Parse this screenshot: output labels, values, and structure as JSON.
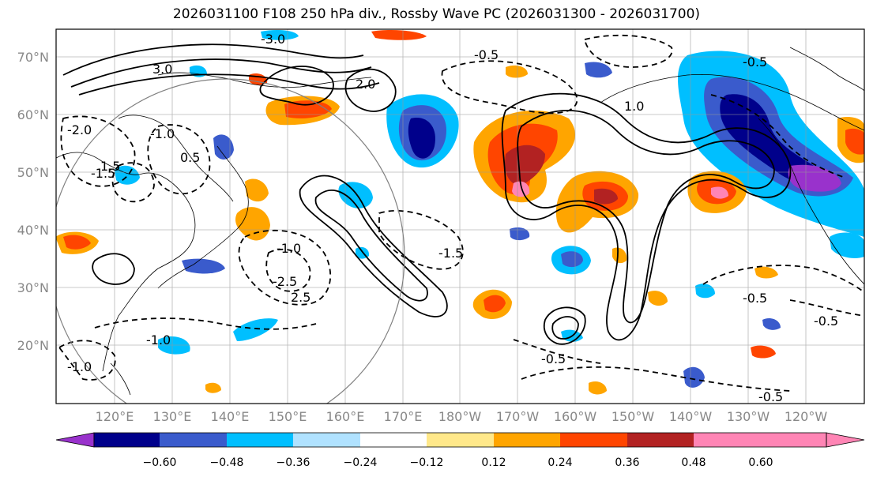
{
  "title": "2026031100 F108 250 hPa div., Rossby Wave PC (2026031300 - 2026031700)",
  "map": {
    "lat_labels": [
      "70°N",
      "60°N",
      "50°N",
      "40°N",
      "30°N",
      "20°N"
    ],
    "lon_labels": [
      "120°E",
      "130°E",
      "140°E",
      "150°E",
      "160°E",
      "170°E",
      "180°W",
      "170°W",
      "160°W",
      "150°W",
      "140°W",
      "130°W",
      "120°W"
    ],
    "contour_labels": [
      "3.0",
      "2.0",
      "1.0",
      "0.5",
      "1.5",
      "2.5",
      "-0.5",
      "-1.0",
      "-1.5",
      "-2.0",
      "-2.5",
      "-3.0",
      "-0.5",
      "-1.0",
      "-0.5",
      "-0.5",
      "-1.5",
      "-1.0",
      "-0.5",
      "-1.0",
      "-0.5"
    ]
  },
  "colorbar": {
    "ticks": [
      "−0.60",
      "−0.48",
      "−0.36",
      "−0.24",
      "−0.12",
      "0.12",
      "0.24",
      "0.36",
      "0.48",
      "0.60"
    ],
    "colors": [
      "#9932cc",
      "#00008b",
      "#3a5bcc",
      "#00bfff",
      "#b0e2ff",
      "#ffffff",
      "#ffe88a",
      "#ffa500",
      "#ff4500",
      "#b22222",
      "#ff85b5",
      "#ff85b5"
    ],
    "under_color": "#9932cc",
    "over_color": "#ff85b5"
  },
  "colors": {
    "neg_dark": "#00008b",
    "neg_mid": "#3a5bcc",
    "neg_light": "#00bfff",
    "neg_pale": "#b0e2ff",
    "pos_pale": "#ffe88a",
    "pos_mid": "#ffa500",
    "pos_strong": "#ff4500",
    "pos_dark": "#b22222",
    "pos_max": "#ff85b5",
    "neg_max": "#9932cc"
  }
}
